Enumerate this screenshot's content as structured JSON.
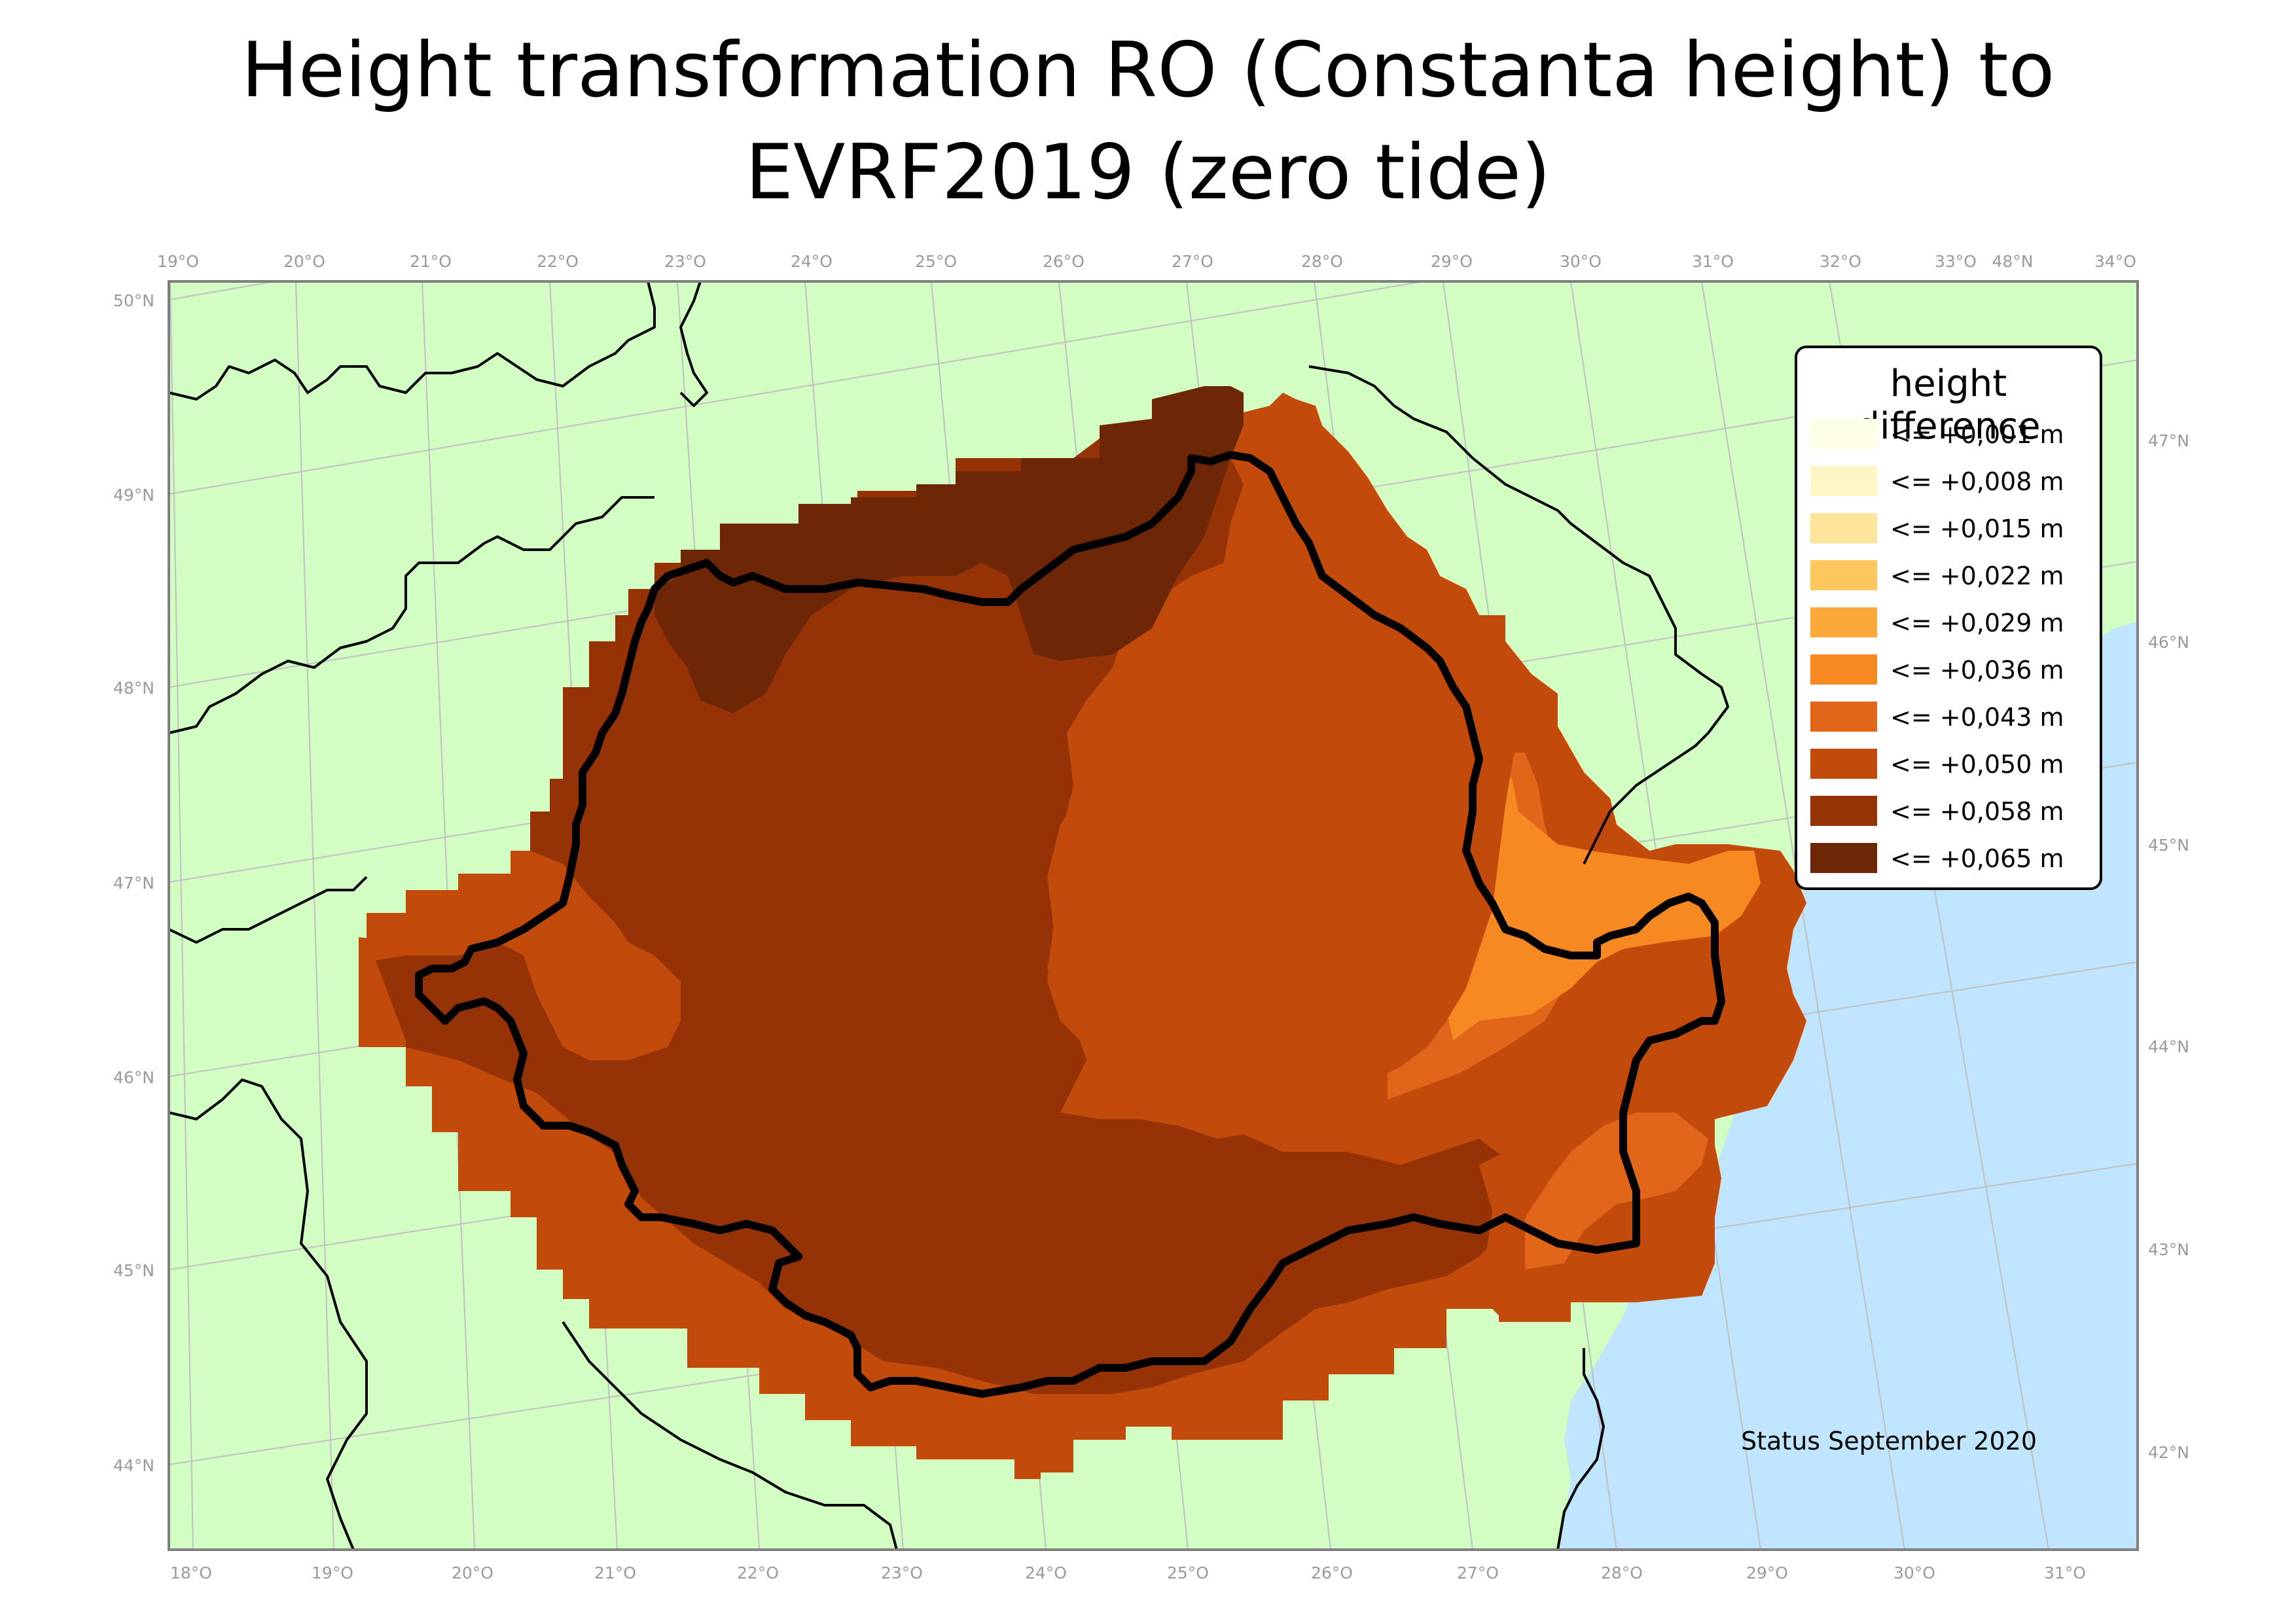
{
  "title": {
    "line1": "Height transformation RO (Constanta height) to",
    "line2": "EVRF2019 (zero tide)"
  },
  "map": {
    "colors": {
      "land": "#d2fec3",
      "sea": "#bfe6fe",
      "border": "#000000",
      "graticule": "#c0c0c0"
    },
    "graticule": {
      "top_longitude_labels": [
        "19°O",
        "20°O",
        "21°O",
        "22°O",
        "23°O",
        "24°O",
        "25°O",
        "26°O",
        "27°O",
        "28°O",
        "29°O",
        "30°O",
        "31°O",
        "32°O",
        "33°O",
        "48°N",
        "34°O"
      ],
      "bottom_longitude_labels": [
        "18°O",
        "19°O",
        "20°O",
        "21°O",
        "22°O",
        "23°O",
        "24°O",
        "25°O",
        "26°O",
        "27°O",
        "28°O",
        "29°O",
        "30°O",
        "31°O"
      ],
      "left_latitude_labels": [
        "50°N",
        "49°N",
        "48°N",
        "47°N",
        "46°N",
        "45°N",
        "44°N"
      ],
      "right_latitude_labels": [
        "47°N",
        "46°N",
        "45°N",
        "44°N",
        "43°N",
        "42°N"
      ]
    }
  },
  "legend": {
    "title": "height difference",
    "items": [
      {
        "label": "<= +0,001 m",
        "color": "#fefee6"
      },
      {
        "label": "<= +0,008 m",
        "color": "#fff6c8"
      },
      {
        "label": "<= +0,015 m",
        "color": "#fee39b"
      },
      {
        "label": "<= +0,022 m",
        "color": "#fec75e"
      },
      {
        "label": "<= +0,029 m",
        "color": "#fda83a"
      },
      {
        "label": "<= +0,036 m",
        "color": "#f68922"
      },
      {
        "label": "<= +0,043 m",
        "color": "#e1661a"
      },
      {
        "label": "<= +0,050 m",
        "color": "#c24a0a"
      },
      {
        "label": "<= +0,058 m",
        "color": "#953306"
      },
      {
        "label": "<= +0,065 m",
        "color": "#6d2706"
      }
    ]
  },
  "status": "Status September 2020"
}
